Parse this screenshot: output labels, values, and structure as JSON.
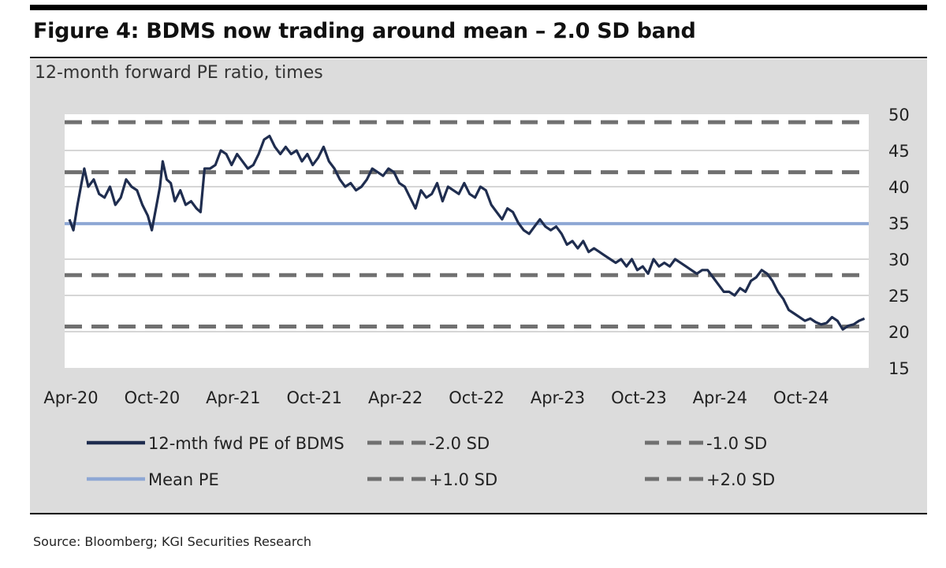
{
  "title": "Figure 4: BDMS now trading around mean – 2.0 SD band",
  "subtitle": "12-month forward PE ratio, times",
  "source": "Source: Bloomberg; KGI Securities Research",
  "chart_data": {
    "type": "line",
    "title": "Figure 4: BDMS now trading around mean – 2.0 SD band",
    "ylabel": "12-month forward PE ratio, times",
    "ylim": [
      15,
      50
    ],
    "yticks": [
      50,
      45,
      40,
      35,
      30,
      25,
      20,
      15
    ],
    "xlabels": [
      "Apr-20",
      "Oct-20",
      "Apr-21",
      "Oct-21",
      "Apr-22",
      "Oct-22",
      "Apr-23",
      "Oct-23",
      "Apr-24",
      "Oct-24"
    ],
    "xlim_months": [
      0,
      59
    ],
    "label_months": [
      0,
      6,
      12,
      18,
      24,
      30,
      36,
      42,
      48,
      54
    ],
    "grid": true,
    "colors": {
      "pe": "#1f2d4f",
      "mean": "#8ea7d4",
      "band": "#707070"
    },
    "reference_lines": [
      {
        "name": "+2.0 SD",
        "value": 48.9,
        "style": "dashed"
      },
      {
        "name": "+1.0 SD",
        "value": 42.0,
        "style": "dashed"
      },
      {
        "name": "Mean PE",
        "value": 34.9,
        "style": "solid"
      },
      {
        "name": "-1.0 SD",
        "value": 27.8,
        "style": "dashed"
      },
      {
        "name": "-2.0 SD",
        "value": 20.7,
        "style": "dashed"
      }
    ],
    "series": [
      {
        "name": "12-mth fwd PE of BDMS",
        "points": [
          [
            0,
            35.5
          ],
          [
            0.3,
            34.0
          ],
          [
            0.6,
            37.5
          ],
          [
            0.9,
            40.5
          ],
          [
            1.1,
            42.5
          ],
          [
            1.4,
            40.0
          ],
          [
            1.8,
            41.0
          ],
          [
            2.2,
            39.0
          ],
          [
            2.6,
            38.5
          ],
          [
            3.0,
            40.0
          ],
          [
            3.4,
            37.5
          ],
          [
            3.8,
            38.5
          ],
          [
            4.2,
            41.0
          ],
          [
            4.6,
            40.0
          ],
          [
            5.0,
            39.5
          ],
          [
            5.4,
            37.5
          ],
          [
            5.8,
            36.0
          ],
          [
            6.1,
            34.0
          ],
          [
            6.4,
            37.0
          ],
          [
            6.7,
            40.0
          ],
          [
            6.9,
            43.5
          ],
          [
            7.2,
            41.0
          ],
          [
            7.5,
            40.5
          ],
          [
            7.8,
            38.0
          ],
          [
            8.2,
            39.5
          ],
          [
            8.6,
            37.5
          ],
          [
            9.0,
            38.0
          ],
          [
            9.4,
            37.0
          ],
          [
            9.7,
            36.5
          ],
          [
            10.0,
            42.5
          ],
          [
            10.4,
            42.5
          ],
          [
            10.8,
            43.0
          ],
          [
            11.2,
            45.0
          ],
          [
            11.6,
            44.5
          ],
          [
            12.0,
            43.0
          ],
          [
            12.4,
            44.5
          ],
          [
            12.8,
            43.5
          ],
          [
            13.2,
            42.5
          ],
          [
            13.6,
            43.0
          ],
          [
            14.0,
            44.5
          ],
          [
            14.4,
            46.5
          ],
          [
            14.8,
            47.0
          ],
          [
            15.2,
            45.5
          ],
          [
            15.6,
            44.5
          ],
          [
            16.0,
            45.5
          ],
          [
            16.4,
            44.5
          ],
          [
            16.8,
            45.0
          ],
          [
            17.2,
            43.5
          ],
          [
            17.6,
            44.5
          ],
          [
            18.0,
            43.0
          ],
          [
            18.4,
            44.0
          ],
          [
            18.8,
            45.5
          ],
          [
            19.2,
            43.5
          ],
          [
            19.6,
            42.5
          ],
          [
            20.0,
            41.0
          ],
          [
            20.4,
            40.0
          ],
          [
            20.8,
            40.5
          ],
          [
            21.2,
            39.5
          ],
          [
            21.6,
            40.0
          ],
          [
            22.0,
            41.0
          ],
          [
            22.4,
            42.5
          ],
          [
            22.8,
            42.0
          ],
          [
            23.2,
            41.5
          ],
          [
            23.6,
            42.5
          ],
          [
            24.0,
            42.0
          ],
          [
            24.4,
            40.5
          ],
          [
            24.8,
            40.0
          ],
          [
            25.2,
            38.5
          ],
          [
            25.6,
            37.0
          ],
          [
            26.0,
            39.5
          ],
          [
            26.4,
            38.5
          ],
          [
            26.8,
            39.0
          ],
          [
            27.2,
            40.5
          ],
          [
            27.6,
            38.0
          ],
          [
            28.0,
            40.0
          ],
          [
            28.4,
            39.5
          ],
          [
            28.8,
            39.0
          ],
          [
            29.2,
            40.5
          ],
          [
            29.6,
            39.0
          ],
          [
            30.0,
            38.5
          ],
          [
            30.4,
            40.0
          ],
          [
            30.8,
            39.5
          ],
          [
            31.2,
            37.5
          ],
          [
            31.6,
            36.5
          ],
          [
            32.0,
            35.5
          ],
          [
            32.4,
            37.0
          ],
          [
            32.8,
            36.5
          ],
          [
            33.2,
            35.0
          ],
          [
            33.6,
            34.0
          ],
          [
            34.0,
            33.5
          ],
          [
            34.4,
            34.5
          ],
          [
            34.8,
            35.5
          ],
          [
            35.2,
            34.5
          ],
          [
            35.6,
            34.0
          ],
          [
            36.0,
            34.5
          ],
          [
            36.4,
            33.5
          ],
          [
            36.8,
            32.0
          ],
          [
            37.2,
            32.5
          ],
          [
            37.6,
            31.5
          ],
          [
            38.0,
            32.5
          ],
          [
            38.4,
            31.0
          ],
          [
            38.8,
            31.5
          ],
          [
            39.2,
            31.0
          ],
          [
            39.6,
            30.5
          ],
          [
            40.0,
            30.0
          ],
          [
            40.4,
            29.5
          ],
          [
            40.8,
            30.0
          ],
          [
            41.2,
            29.0
          ],
          [
            41.6,
            30.0
          ],
          [
            42.0,
            28.5
          ],
          [
            42.4,
            29.0
          ],
          [
            42.8,
            28.0
          ],
          [
            43.2,
            30.0
          ],
          [
            43.6,
            29.0
          ],
          [
            44.0,
            29.5
          ],
          [
            44.4,
            29.0
          ],
          [
            44.8,
            30.0
          ],
          [
            45.2,
            29.5
          ],
          [
            45.6,
            29.0
          ],
          [
            46.0,
            28.5
          ],
          [
            46.4,
            28.0
          ],
          [
            46.8,
            28.5
          ],
          [
            47.2,
            28.5
          ],
          [
            47.6,
            27.5
          ],
          [
            48.0,
            26.5
          ],
          [
            48.4,
            25.5
          ],
          [
            48.8,
            25.5
          ],
          [
            49.2,
            25.0
          ],
          [
            49.6,
            26.0
          ],
          [
            50.0,
            25.5
          ],
          [
            50.4,
            27.0
          ],
          [
            50.8,
            27.5
          ],
          [
            51.2,
            28.5
          ],
          [
            51.6,
            28.0
          ],
          [
            52.0,
            27.0
          ],
          [
            52.4,
            25.5
          ],
          [
            52.8,
            24.5
          ],
          [
            53.2,
            23.0
          ],
          [
            53.6,
            22.5
          ],
          [
            54.0,
            22.0
          ],
          [
            54.4,
            21.5
          ],
          [
            54.8,
            21.8
          ],
          [
            55.2,
            21.3
          ],
          [
            55.6,
            21.0
          ],
          [
            56.0,
            21.2
          ],
          [
            56.4,
            22.0
          ],
          [
            56.8,
            21.5
          ],
          [
            57.2,
            20.3
          ],
          [
            57.6,
            20.8
          ],
          [
            58.0,
            21.0
          ],
          [
            58.4,
            21.5
          ],
          [
            58.8,
            21.8
          ]
        ]
      }
    ],
    "legend": [
      {
        "label": "12-mth fwd PE of BDMS",
        "style": "solid",
        "color": "#1f2d4f"
      },
      {
        "label": "-2.0 SD",
        "style": "dashed",
        "color": "#707070"
      },
      {
        "label": "-1.0 SD",
        "style": "dashed",
        "color": "#707070"
      },
      {
        "label": "Mean PE",
        "style": "solid",
        "color": "#8ea7d4"
      },
      {
        "label": "+1.0 SD",
        "style": "dashed",
        "color": "#707070"
      },
      {
        "label": "+2.0 SD",
        "style": "dashed",
        "color": "#707070"
      }
    ]
  }
}
